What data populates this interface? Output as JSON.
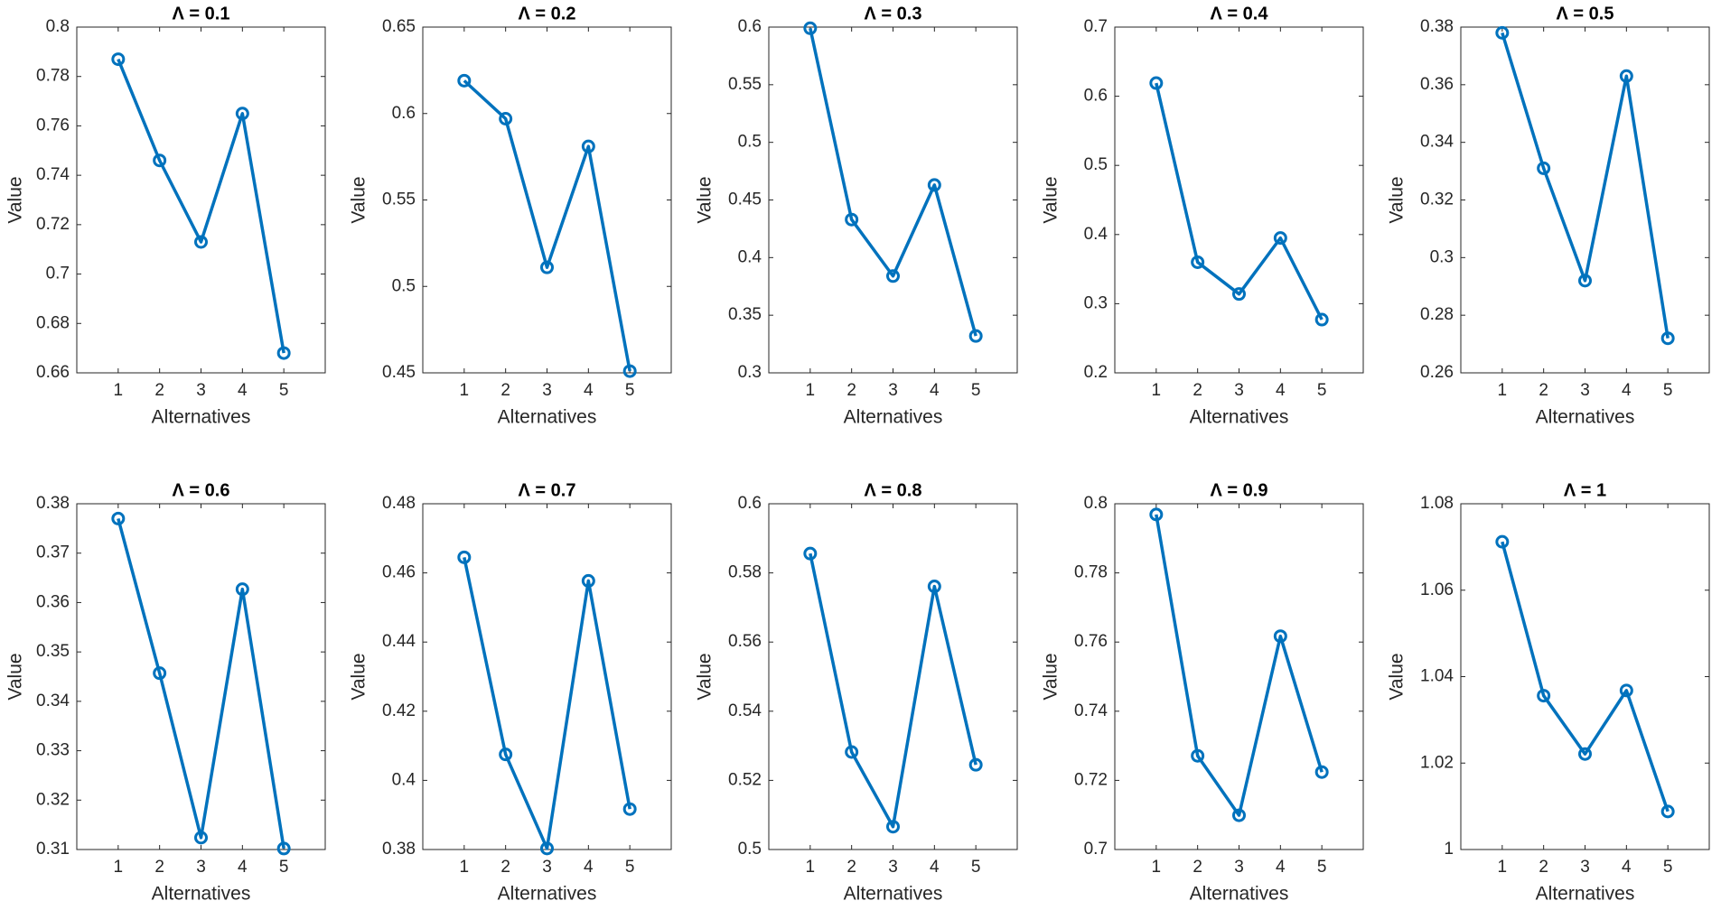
{
  "chart_data": [
    {
      "type": "line",
      "title": "Λ = 0.1",
      "xlabel": "Alternatives",
      "ylabel": "Value",
      "x": [
        1,
        2,
        3,
        4,
        5
      ],
      "xlim": [
        0,
        6
      ],
      "xticks": [
        1,
        2,
        3,
        4,
        5
      ],
      "ylim": [
        0.66,
        0.8
      ],
      "yticks": [
        0.66,
        0.68,
        0.7,
        0.72,
        0.74,
        0.76,
        0.78,
        0.8
      ],
      "color": "#0072bd",
      "values": [
        0.787,
        0.746,
        0.713,
        0.765,
        0.668
      ]
    },
    {
      "type": "line",
      "title": "Λ = 0.2",
      "xlabel": "Alternatives",
      "ylabel": "Value",
      "x": [
        1,
        2,
        3,
        4,
        5
      ],
      "xlim": [
        0,
        6
      ],
      "xticks": [
        1,
        2,
        3,
        4,
        5
      ],
      "ylim": [
        0.45,
        0.65
      ],
      "yticks": [
        0.45,
        0.5,
        0.55,
        0.6,
        0.65
      ],
      "color": "#0072bd",
      "values": [
        0.619,
        0.597,
        0.511,
        0.581,
        0.451
      ]
    },
    {
      "type": "line",
      "title": "Λ = 0.3",
      "xlabel": "Alternatives",
      "ylabel": "Value",
      "x": [
        1,
        2,
        3,
        4,
        5
      ],
      "xlim": [
        0,
        6
      ],
      "xticks": [
        1,
        2,
        3,
        4,
        5
      ],
      "ylim": [
        0.3,
        0.6
      ],
      "yticks": [
        0.3,
        0.35,
        0.4,
        0.45,
        0.5,
        0.55,
        0.6
      ],
      "color": "#0072bd",
      "values": [
        0.599,
        0.433,
        0.384,
        0.463,
        0.332
      ]
    },
    {
      "type": "line",
      "title": "Λ = 0.4",
      "xlabel": "Alternatives",
      "ylabel": "Value",
      "x": [
        1,
        2,
        3,
        4,
        5
      ],
      "xlim": [
        0,
        6
      ],
      "xticks": [
        1,
        2,
        3,
        4,
        5
      ],
      "ylim": [
        0.2,
        0.7
      ],
      "yticks": [
        0.2,
        0.3,
        0.4,
        0.5,
        0.6,
        0.7
      ],
      "color": "#0072bd",
      "values": [
        0.619,
        0.36,
        0.314,
        0.395,
        0.277
      ]
    },
    {
      "type": "line",
      "title": "Λ = 0.5",
      "xlabel": "Alternatives",
      "ylabel": "Value",
      "x": [
        1,
        2,
        3,
        4,
        5
      ],
      "xlim": [
        0,
        6
      ],
      "xticks": [
        1,
        2,
        3,
        4,
        5
      ],
      "ylim": [
        0.26,
        0.38
      ],
      "yticks": [
        0.26,
        0.28,
        0.3,
        0.32,
        0.34,
        0.36,
        0.38
      ],
      "color": "#0072bd",
      "values": [
        0.378,
        0.331,
        0.292,
        0.363,
        0.272
      ]
    },
    {
      "type": "line",
      "title": "Λ = 0.6",
      "xlabel": "Alternatives",
      "ylabel": "Value",
      "x": [
        1,
        2,
        3,
        4,
        5
      ],
      "xlim": [
        0,
        6
      ],
      "xticks": [
        1,
        2,
        3,
        4,
        5
      ],
      "ylim": [
        0.31,
        0.38
      ],
      "yticks": [
        0.31,
        0.32,
        0.33,
        0.34,
        0.35,
        0.36,
        0.37,
        0.38
      ],
      "color": "#0072bd",
      "values": [
        0.377,
        0.3457,
        0.3124,
        0.3627,
        0.3102
      ]
    },
    {
      "type": "line",
      "title": "Λ = 0.7",
      "xlabel": "Alternatives",
      "ylabel": "Value",
      "x": [
        1,
        2,
        3,
        4,
        5
      ],
      "xlim": [
        0,
        6
      ],
      "xticks": [
        1,
        2,
        3,
        4,
        5
      ],
      "ylim": [
        0.38,
        0.48
      ],
      "yticks": [
        0.38,
        0.4,
        0.42,
        0.44,
        0.46,
        0.48
      ],
      "color": "#0072bd",
      "values": [
        0.4645,
        0.4075,
        0.3803,
        0.4577,
        0.3917
      ]
    },
    {
      "type": "line",
      "title": "Λ = 0.8",
      "xlabel": "Alternatives",
      "ylabel": "Value",
      "x": [
        1,
        2,
        3,
        4,
        5
      ],
      "xlim": [
        0,
        6
      ],
      "xticks": [
        1,
        2,
        3,
        4,
        5
      ],
      "ylim": [
        0.5,
        0.6
      ],
      "yticks": [
        0.5,
        0.52,
        0.54,
        0.56,
        0.58,
        0.6
      ],
      "color": "#0072bd",
      "values": [
        0.5856,
        0.5282,
        0.5066,
        0.5761,
        0.5245
      ]
    },
    {
      "type": "line",
      "title": "Λ = 0.9",
      "xlabel": "Alternatives",
      "ylabel": "Value",
      "x": [
        1,
        2,
        3,
        4,
        5
      ],
      "xlim": [
        0,
        6
      ],
      "xticks": [
        1,
        2,
        3,
        4,
        5
      ],
      "ylim": [
        0.7,
        0.8
      ],
      "yticks": [
        0.7,
        0.72,
        0.74,
        0.76,
        0.78,
        0.8
      ],
      "color": "#0072bd",
      "values": [
        0.7969,
        0.7271,
        0.7099,
        0.7617,
        0.7224
      ]
    },
    {
      "type": "line",
      "title": "Λ = 1",
      "xlabel": "Alternatives",
      "ylabel": "Value",
      "x": [
        1,
        2,
        3,
        4,
        5
      ],
      "xlim": [
        0,
        6
      ],
      "xticks": [
        1,
        2,
        3,
        4,
        5
      ],
      "ylim": [
        1,
        1.08
      ],
      "yticks": [
        1,
        1.02,
        1.04,
        1.06,
        1.08
      ],
      "color": "#0072bd",
      "values": [
        1.0712,
        1.0356,
        1.0221,
        1.0368,
        1.0088
      ]
    }
  ]
}
